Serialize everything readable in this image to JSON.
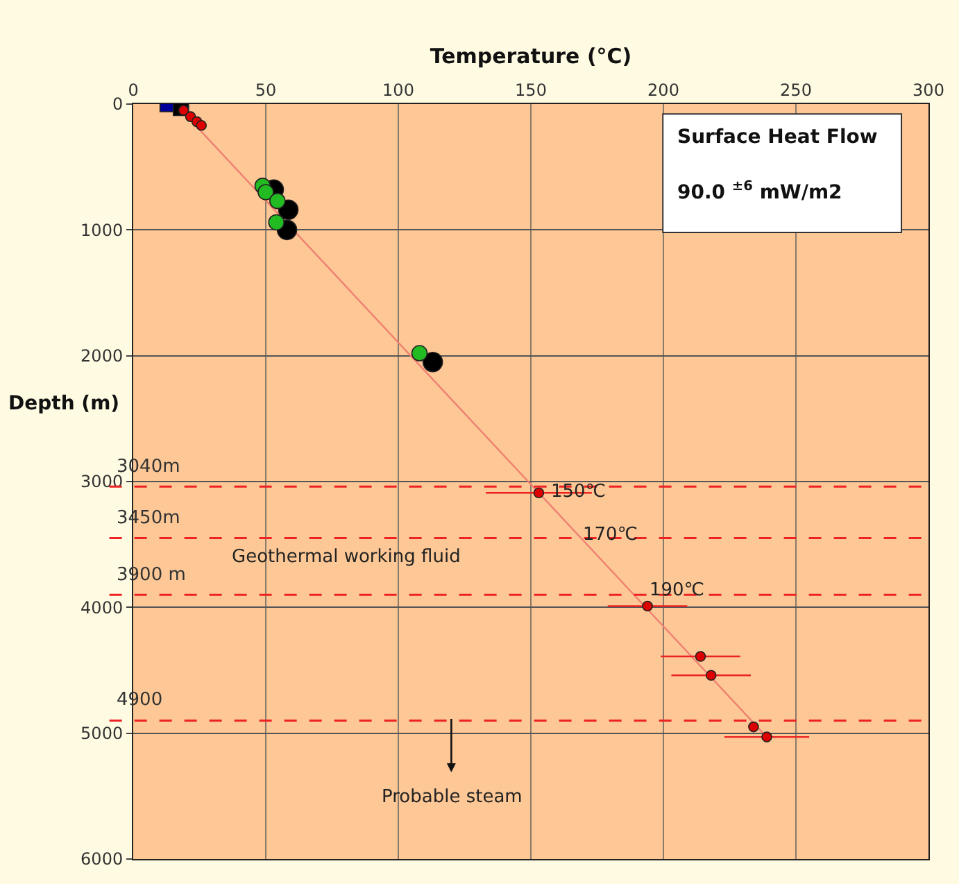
{
  "chart_data": {
    "type": "scatter",
    "xlabel": "Temperature (°C)",
    "ylabel": "Depth (m)",
    "xlim": [
      0,
      300
    ],
    "xticks": [
      0,
      50,
      100,
      150,
      200,
      250,
      300
    ],
    "ylim": [
      6000,
      0
    ],
    "yticks": [
      0,
      1000,
      2000,
      3000,
      4000,
      5000,
      6000
    ],
    "grid": true,
    "series": [
      {
        "type": "line",
        "color": "#f08070",
        "marker": "none",
        "line_style": "solid",
        "x": [
          16,
          239
        ],
        "values": [
          0,
          5030
        ]
      },
      {
        "color": "#000099",
        "marker": "square",
        "x": [
          13
        ],
        "values": [
          0
        ]
      },
      {
        "color": "#000000",
        "marker": "square",
        "x": [
          18
        ],
        "values": [
          30
        ]
      },
      {
        "color": "#dd0000",
        "marker": "circle",
        "x": [
          19,
          21.6,
          24,
          25.7
        ],
        "values": [
          50,
          100,
          140,
          170
        ]
      },
      {
        "color": "#000000",
        "marker": "circle",
        "x": [
          53,
          58.5,
          58,
          113
        ],
        "values": [
          680,
          840,
          1000,
          2050
        ]
      },
      {
        "color": "#22bb22",
        "marker": "circle",
        "x": [
          48.8,
          50,
          54.4,
          54,
          108
        ],
        "values": [
          650,
          700,
          770,
          940,
          1980
        ]
      },
      {
        "color": "#dd0000",
        "marker": "circle",
        "x": [
          153,
          194,
          214,
          218,
          234,
          239
        ],
        "values": [
          3090,
          3990,
          4390,
          4540,
          4950,
          5030
        ],
        "xerrors": [
          20,
          15,
          15,
          15,
          null,
          16
        ]
      }
    ],
    "ref_lines": [
      {
        "axis": "y",
        "value": 3040,
        "label": "3040m",
        "color": "#ee2222",
        "line_style": "dashed"
      },
      {
        "axis": "y",
        "value": 3450,
        "label": "3450m",
        "color": "#ee2222",
        "line_style": "dashed"
      },
      {
        "axis": "y",
        "value": 3900,
        "label": "3900 m",
        "color": "#ee2222",
        "line_style": "dashed"
      },
      {
        "axis": "y",
        "value": 4900,
        "label": "4900",
        "color": "#ee2222",
        "line_style": "dashed"
      }
    ],
    "annotations": [
      {
        "text": "150℃",
        "x": 168,
        "y": 3080
      },
      {
        "text": "170℃",
        "x": 180,
        "y": 3420
      },
      {
        "text": "190℃",
        "x": 205,
        "y": 3870
      },
      "Geothermal working fluid",
      "Probable steam",
      "Surface Heat Flow",
      "90.0 $^{±6}$ mW/m2"
    ]
  }
}
